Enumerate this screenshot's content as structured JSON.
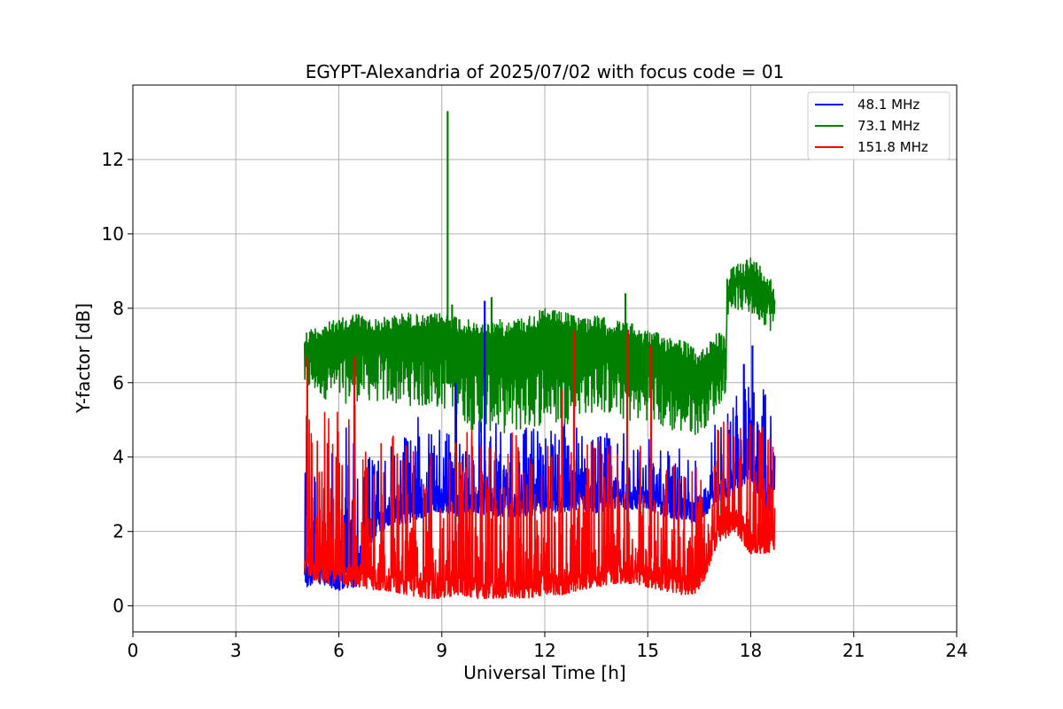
{
  "chart_data": {
    "type": "line",
    "title": "EGYPT-Alexandria of 2025/07/02 with focus code = 01",
    "xlabel": "Universal Time [h]",
    "ylabel": "Y-factor [dB]",
    "xlim": [
      0,
      24
    ],
    "ylim": [
      -0.7,
      14.0
    ],
    "xticks": [
      0,
      3,
      6,
      9,
      12,
      15,
      18,
      21,
      24
    ],
    "yticks": [
      0,
      2,
      4,
      6,
      8,
      10,
      12
    ],
    "grid": true,
    "legend_position": "top-right",
    "series": [
      {
        "name": " 48.1 MHz",
        "color": "#0000ff",
        "envelope": {
          "x": [
            5.0,
            5.5,
            6.0,
            6.5,
            7.0,
            7.5,
            8.0,
            8.5,
            9.0,
            9.5,
            10.0,
            10.5,
            11.0,
            11.5,
            12.0,
            12.5,
            13.0,
            13.5,
            14.0,
            14.5,
            15.0,
            15.5,
            16.0,
            16.5,
            17.0,
            17.5,
            18.0,
            18.5,
            18.7
          ],
          "high": [
            5.2,
            4.8,
            4.8,
            5.0,
            4.0,
            4.6,
            5.2,
            5.2,
            5.3,
            5.6,
            5.3,
            5.0,
            4.8,
            4.8,
            5.0,
            5.0,
            5.0,
            4.8,
            4.6,
            4.8,
            4.6,
            4.4,
            4.2,
            4.4,
            5.2,
            5.8,
            6.2,
            5.8,
            5.0
          ],
          "low": [
            0.5,
            0.6,
            0.4,
            0.5,
            1.8,
            2.2,
            2.2,
            2.4,
            2.5,
            2.4,
            2.5,
            2.4,
            2.4,
            2.4,
            2.5,
            2.5,
            2.6,
            2.5,
            2.6,
            2.6,
            2.6,
            2.4,
            2.3,
            2.2,
            2.8,
            3.0,
            3.4,
            2.4,
            3.2
          ]
        },
        "spikes": [
          {
            "x": 10.25,
            "y": 8.2
          },
          {
            "x": 18.05,
            "y": 7.0
          },
          {
            "x": 9.4,
            "y": 6.0
          },
          {
            "x": 17.8,
            "y": 6.5
          }
        ]
      },
      {
        "name": " 73.1 MHz",
        "color": "#008000",
        "envelope": {
          "x": [
            5.0,
            5.5,
            6.0,
            6.5,
            7.0,
            7.5,
            8.0,
            8.5,
            9.0,
            9.5,
            10.0,
            10.5,
            11.0,
            11.5,
            12.0,
            12.5,
            13.0,
            13.5,
            14.0,
            14.5,
            15.0,
            15.5,
            16.0,
            16.5,
            17.0,
            17.29,
            17.31,
            17.5,
            18.0,
            18.5,
            18.7
          ],
          "high": [
            7.4,
            7.6,
            7.7,
            7.9,
            7.7,
            7.8,
            7.9,
            7.8,
            7.9,
            7.8,
            7.6,
            7.7,
            7.7,
            7.8,
            8.0,
            7.9,
            7.8,
            7.8,
            7.7,
            7.6,
            7.4,
            7.3,
            7.2,
            6.8,
            7.4,
            7.2,
            8.8,
            9.2,
            9.4,
            9.0,
            8.6
          ],
          "low": [
            5.8,
            5.6,
            5.4,
            5.5,
            5.5,
            5.4,
            5.4,
            5.3,
            5.3,
            5.1,
            4.6,
            4.7,
            4.6,
            4.7,
            4.9,
            4.8,
            5.1,
            5.2,
            5.1,
            4.9,
            5.0,
            4.7,
            4.6,
            4.6,
            5.2,
            5.8,
            7.8,
            8.0,
            7.8,
            7.5,
            7.2
          ]
        },
        "spikes": [
          {
            "x": 9.17,
            "y": 13.3
          },
          {
            "x": 10.45,
            "y": 8.3
          },
          {
            "x": 14.35,
            "y": 8.4
          },
          {
            "x": 9.3,
            "y": 8.1
          }
        ]
      },
      {
        "name": " 151.8 MHz",
        "color": "#ff0000",
        "envelope": {
          "x": [
            5.0,
            5.5,
            6.0,
            6.5,
            7.0,
            7.5,
            8.0,
            8.5,
            9.0,
            9.5,
            10.0,
            10.5,
            11.0,
            11.5,
            12.0,
            12.5,
            13.0,
            13.5,
            14.0,
            14.5,
            15.0,
            15.5,
            16.0,
            16.5,
            17.0,
            17.5,
            18.0,
            18.5,
            18.7
          ],
          "high": [
            6.0,
            5.2,
            5.4,
            6.0,
            4.6,
            4.6,
            4.8,
            4.8,
            5.0,
            5.0,
            4.8,
            4.8,
            4.8,
            4.9,
            5.0,
            4.9,
            4.8,
            4.6,
            4.6,
            4.7,
            4.6,
            4.4,
            4.3,
            4.2,
            4.8,
            5.2,
            5.2,
            4.8,
            4.9
          ],
          "low": [
            0.8,
            0.6,
            0.6,
            0.5,
            0.4,
            0.4,
            0.3,
            0.2,
            0.2,
            0.3,
            0.2,
            0.2,
            0.2,
            0.2,
            0.3,
            0.3,
            0.4,
            0.5,
            0.6,
            0.6,
            0.5,
            0.4,
            0.3,
            0.3,
            1.6,
            2.0,
            1.4,
            1.4,
            1.5
          ]
        },
        "spikes": [
          {
            "x": 5.08,
            "y": 6.7
          },
          {
            "x": 6.45,
            "y": 6.7
          },
          {
            "x": 12.85,
            "y": 7.4
          },
          {
            "x": 14.4,
            "y": 7.4
          },
          {
            "x": 15.1,
            "y": 7.0
          },
          {
            "x": 12.5,
            "y": 5.8
          }
        ]
      }
    ]
  }
}
